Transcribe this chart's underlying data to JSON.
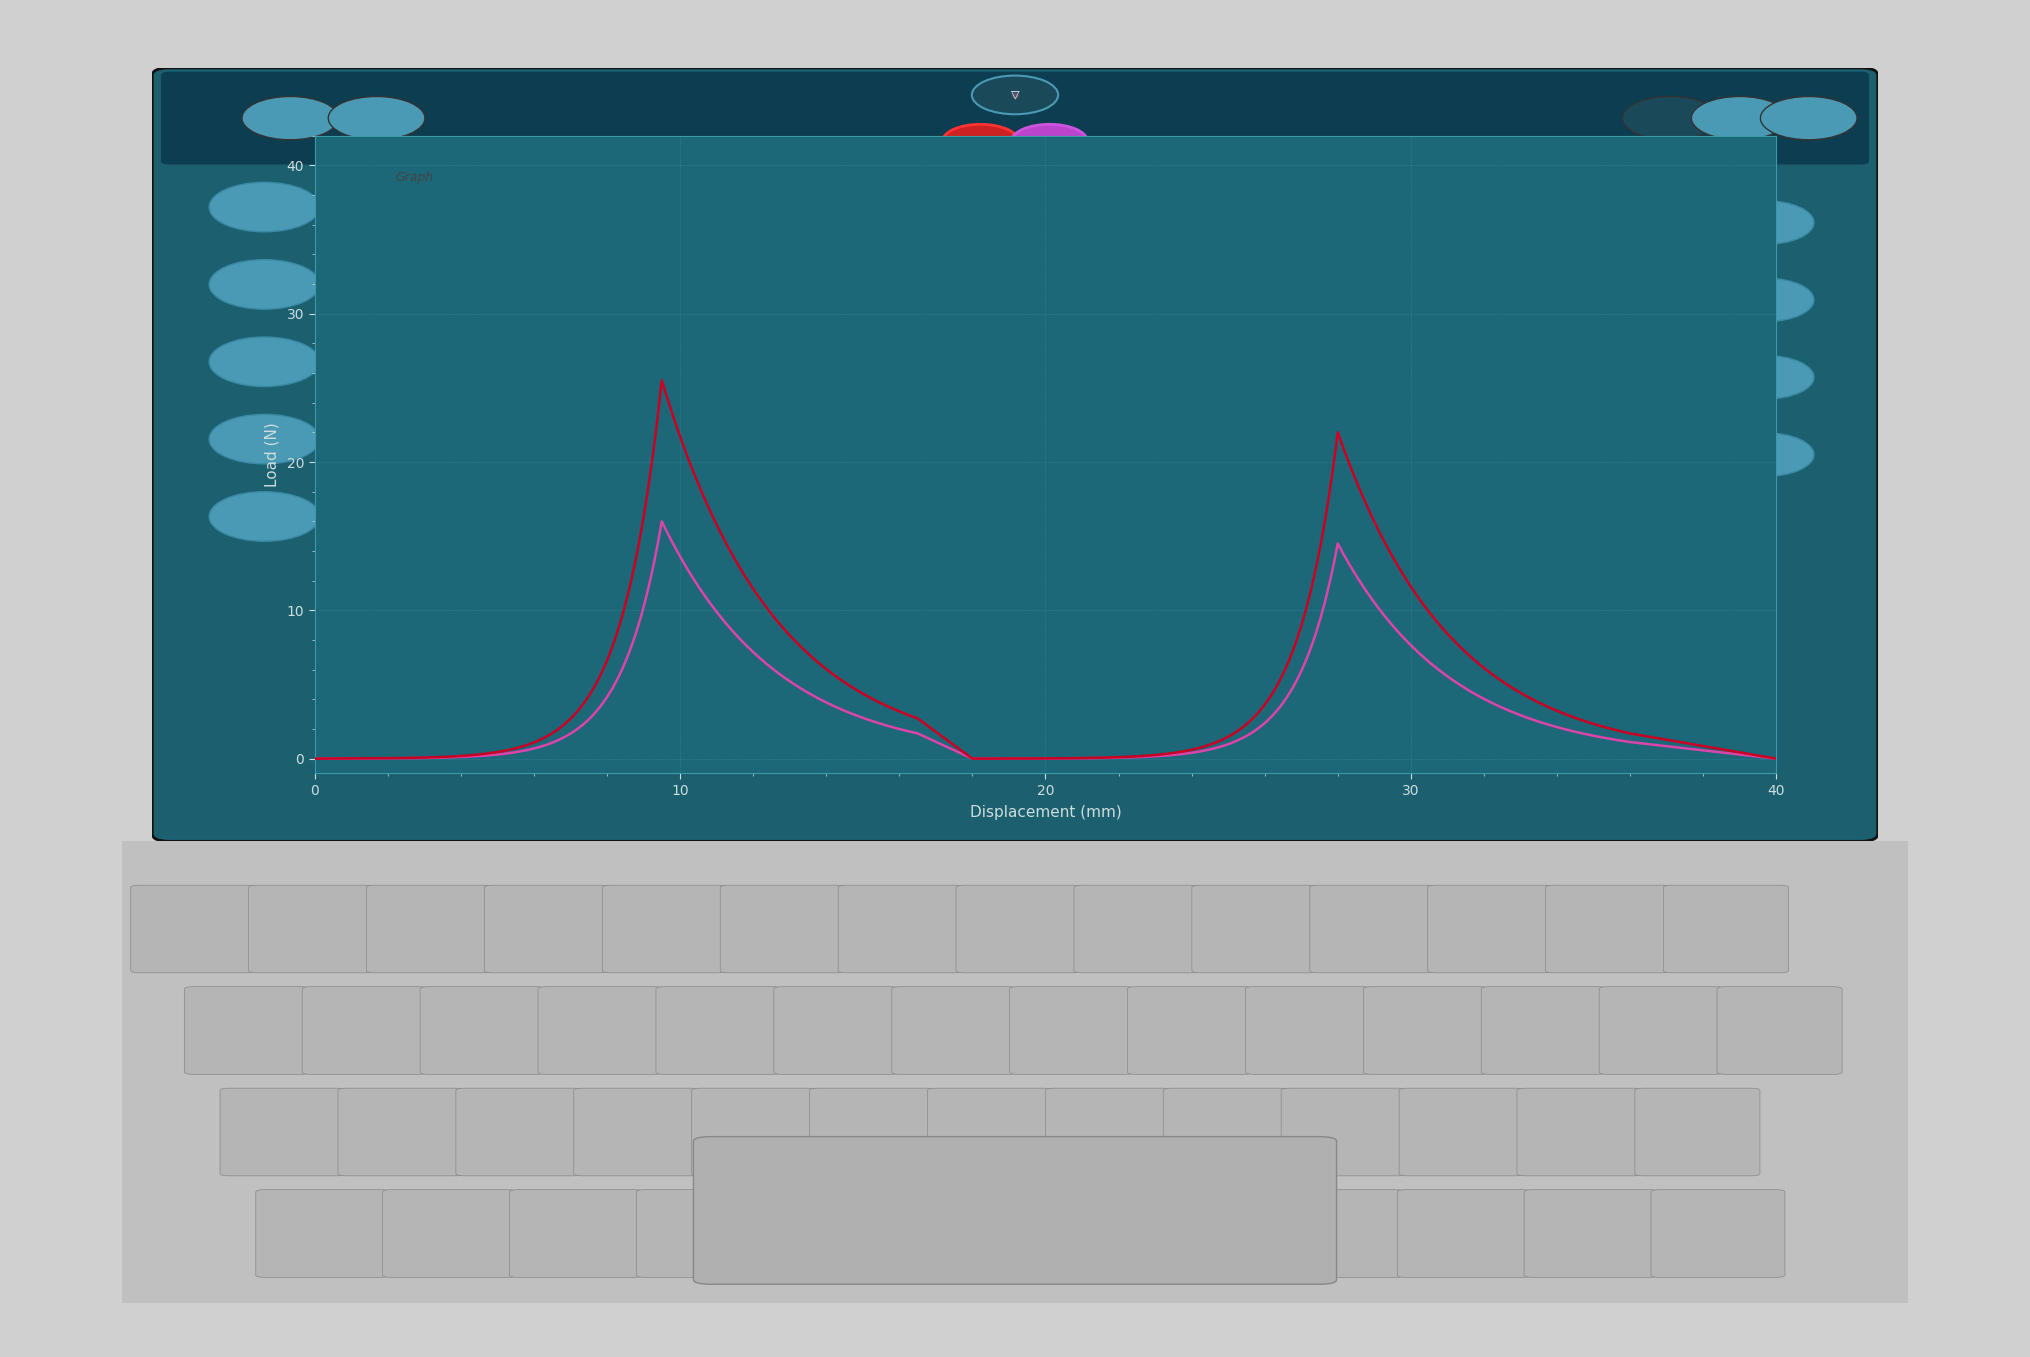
{
  "bg_color": "#1a6070",
  "screen_bg": "#1a6070",
  "plot_bg": "#1c6778",
  "grid_color": "#2a8090",
  "grid_dotted_color": "#3090a0",
  "axis_label_color": "#ccdddd",
  "tick_color": "#ccdddd",
  "xlabel": "Displacement (mm)",
  "ylabel": "Load (N)",
  "xlim": [
    0,
    40
  ],
  "ylim": [
    -1,
    42
  ],
  "yticks": [
    0,
    10,
    20,
    30,
    40
  ],
  "xticks": [
    0,
    10,
    20,
    30,
    40
  ],
  "curve_red": "#cc0022",
  "curve_pink": "#dd44aa",
  "peak1_x": 9.5,
  "peak1_y_red": 25.5,
  "peak1_y_pink": 16.0,
  "peak2_x": 28.0,
  "peak2_y_red": 22.0,
  "peak2_y_pink": 14.5,
  "laptop_frame_color": "#888888",
  "laptop_screen_outer": "#222222",
  "laptop_keyboard_color": "#aaaaaa"
}
